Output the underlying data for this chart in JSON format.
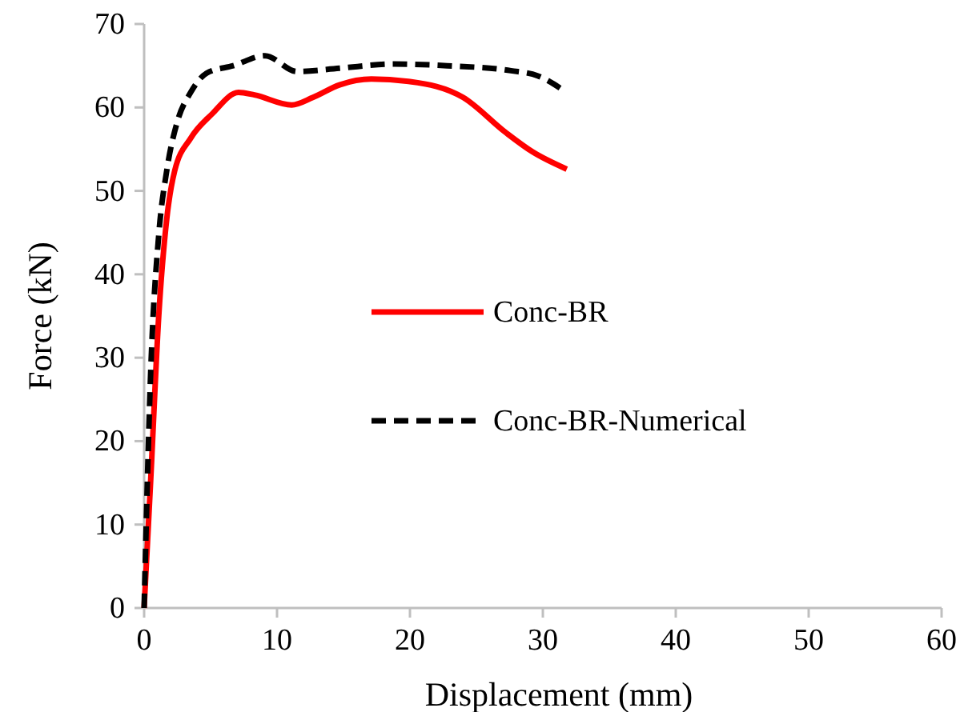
{
  "chart_data": {
    "type": "line",
    "xlabel": "Displacement (mm)",
    "ylabel": "Force (kN)",
    "xlim": [
      0,
      60
    ],
    "ylim": [
      0,
      70
    ],
    "xticks": [
      0,
      10,
      20,
      30,
      40,
      50,
      60
    ],
    "yticks": [
      0,
      10,
      20,
      30,
      40,
      50,
      60,
      70
    ],
    "grid": false,
    "legend": "right",
    "series": [
      {
        "name": "Conc-BR",
        "color": "#ff0000",
        "line_style": "solid",
        "x": [
          0,
          0.5,
          1.1,
          1.7,
          2.3,
          3.5,
          5.1,
          7.1,
          8.3,
          11.1,
          12.7,
          14.7,
          17.1,
          20,
          24,
          27.2,
          29.2,
          31.8
        ],
        "values": [
          0,
          15.5,
          35,
          46.6,
          52.4,
          56.3,
          59.2,
          61.8,
          61.5,
          60.3,
          61.2,
          62.7,
          63.4,
          63.1,
          61.2,
          57,
          54.7,
          52.6
        ]
      },
      {
        "name": "Conc-BR-Numerical",
        "color": "#000000",
        "line_style": "dashed",
        "x": [
          0,
          0.5,
          1.1,
          1.7,
          2.5,
          3.5,
          4.7,
          6.7,
          9.1,
          11.5,
          14.7,
          18.8,
          22.8,
          27.6,
          29.6,
          31.6
        ],
        "values": [
          0,
          28.5,
          44.7,
          52.4,
          58.3,
          61.8,
          64.1,
          65,
          66.2,
          64.3,
          64.7,
          65.2,
          65,
          64.4,
          63.8,
          62
        ]
      }
    ]
  }
}
